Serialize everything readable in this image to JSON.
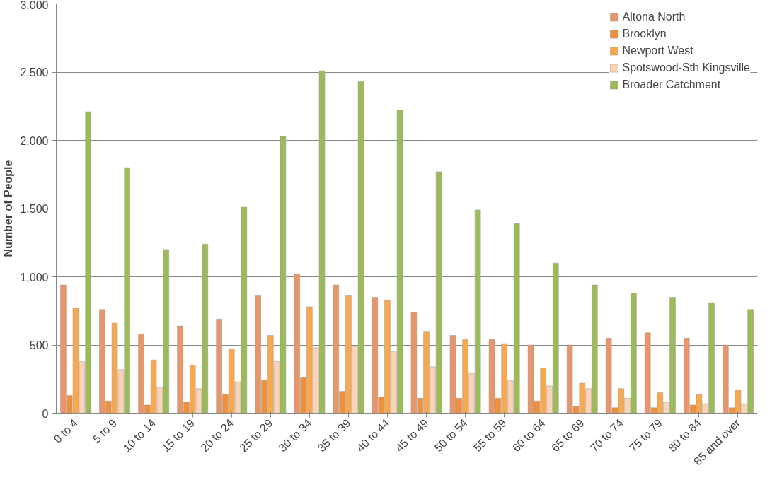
{
  "chart_data": {
    "type": "bar",
    "ylabel": "Number of People",
    "categories": [
      "0 to 4",
      "5 to 9",
      "10 to 14",
      "15 to 19",
      "20 to 24",
      "25 to 29",
      "30 to 34",
      "35 to 39",
      "40 to 44",
      "45 to 49",
      "50 to 54",
      "55 to 59",
      "60 to 64",
      "65 to 69",
      "70 to 74",
      "75 to 79",
      "80 to 84",
      "85 and over"
    ],
    "series": [
      {
        "name": "Altona North",
        "color": "#e8956a",
        "values": [
          940,
          760,
          580,
          640,
          690,
          860,
          1020,
          940,
          850,
          740,
          570,
          540,
          500,
          500,
          550,
          590,
          550,
          500
        ]
      },
      {
        "name": "Brooklyn",
        "color": "#f0903a",
        "values": [
          130,
          90,
          60,
          80,
          140,
          240,
          260,
          160,
          120,
          110,
          110,
          110,
          90,
          50,
          40,
          40,
          60,
          40
        ]
      },
      {
        "name": "Newport West",
        "color": "#f9a84e",
        "values": [
          770,
          660,
          390,
          350,
          470,
          570,
          780,
          860,
          830,
          600,
          540,
          510,
          330,
          220,
          180,
          150,
          140,
          170
        ]
      },
      {
        "name": "Spotswood-Sth Kingsville",
        "color": "#fbd3b8",
        "values": [
          380,
          320,
          190,
          180,
          230,
          380,
          480,
          490,
          450,
          340,
          290,
          240,
          200,
          180,
          110,
          80,
          70,
          70
        ]
      },
      {
        "name": "Broader Catchment",
        "color": "#9bbb59",
        "values": [
          2210,
          1800,
          1200,
          1240,
          1510,
          2030,
          2510,
          2430,
          2220,
          1770,
          1490,
          1390,
          1100,
          940,
          880,
          850,
          810,
          760
        ]
      }
    ],
    "ylim": [
      0,
      3000
    ],
    "yticks": [
      {
        "value": 0,
        "label": "0"
      },
      {
        "value": 500,
        "label": "500"
      },
      {
        "value": 1000,
        "label": "1,000"
      },
      {
        "value": 1500,
        "label": "1,500"
      },
      {
        "value": 2000,
        "label": "2,000"
      },
      {
        "value": 2500,
        "label": "2,500"
      },
      {
        "value": 3000,
        "label": "3,000"
      }
    ],
    "grid": "y",
    "legend": "top right"
  }
}
